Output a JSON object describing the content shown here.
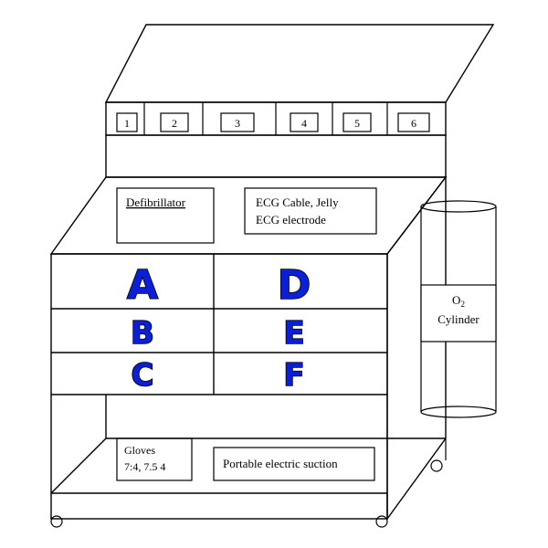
{
  "drawers_top": [
    "1",
    "2",
    "3",
    "4",
    "5",
    "6"
  ],
  "top_labels": {
    "defibrillator": "Defibrillator",
    "ecg_line1": "ECG Cable, Jelly",
    "ecg_line2": "ECG electrode"
  },
  "drawer_letters": [
    "A",
    "B",
    "C",
    "D",
    "E",
    "F"
  ],
  "cylinder": {
    "line1_base": "O",
    "line1_sub": "2",
    "line2": "Cylinder"
  },
  "bottom_labels": {
    "gloves_line1": "Gloves",
    "gloves_line2": "7:4, 7.5 4",
    "suction": "Portable electric suction"
  },
  "colors": {
    "letter_fill": "#0b1fd6",
    "line": "#000000"
  }
}
